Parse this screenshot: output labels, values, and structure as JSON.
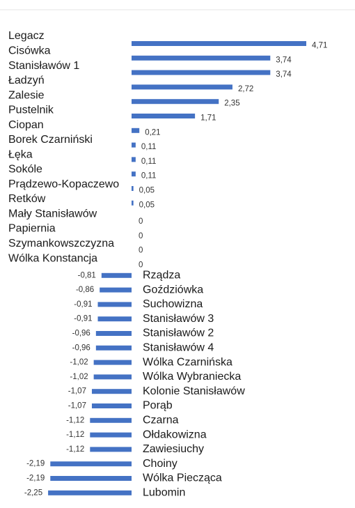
{
  "chart_data": {
    "type": "bar",
    "orientation": "horizontal",
    "color": "#4472c4",
    "categories": [
      "Legacz",
      "Cisówka",
      "Stanisławów 1",
      "Ładzyń",
      "Zalesie",
      "Pustelnik",
      "Ciopan",
      "Borek Czarniński",
      "Łęka",
      "Sokóle",
      "Prądzewo-Kopaczewo",
      "Retków",
      "Mały Stanisławów",
      "Papiernia",
      "Szymankowszczyzna",
      "Wólka Konstancja",
      "Rządza",
      "Goździówka",
      "Suchowizna",
      "Stanisławów 3",
      "Stanisławów 2",
      "Stanisławów 4",
      "Wólka Czarnińska",
      "Wólka Wybraniecka",
      "Kolonie Stanisławów",
      "Porąb",
      "Czarna",
      "Ołdakowizna",
      "Zawiesiuchy",
      "Choiny",
      "Wólka Piecząca",
      "Lubomin"
    ],
    "values": [
      4.71,
      3.74,
      3.74,
      2.72,
      2.35,
      1.71,
      0.21,
      0.11,
      0.11,
      0.11,
      0.05,
      0.05,
      0,
      0,
      0,
      0,
      -0.81,
      -0.86,
      -0.91,
      -0.91,
      -0.96,
      -0.96,
      -1.02,
      -1.02,
      -1.07,
      -1.07,
      -1.12,
      -1.12,
      -1.12,
      -2.19,
      -2.19,
      -2.25
    ],
    "value_labels": [
      "4,71",
      "3,74",
      "3,74",
      "2,72",
      "2,35",
      "1,71",
      "0,21",
      "0,11",
      "0,11",
      "0,11",
      "0,05",
      "0,05",
      "0",
      "0",
      "0",
      "0",
      "-0,81",
      "-0,86",
      "-0,91",
      "-0,91",
      "-0,96",
      "-0,96",
      "-1,02",
      "-1,02",
      "-1,07",
      "-1,07",
      "-1,12",
      "-1,12",
      "-1,12",
      "-2,19",
      "-2,19",
      "-2,25"
    ]
  }
}
